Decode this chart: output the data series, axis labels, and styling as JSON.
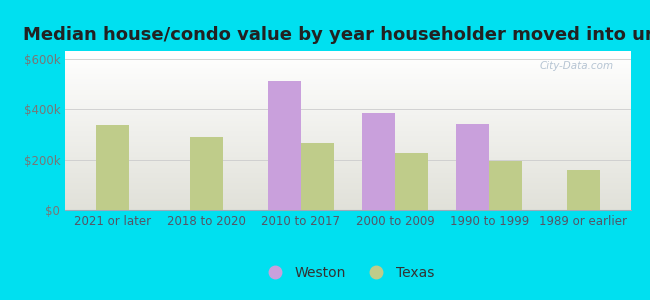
{
  "title": "Median house/condo value by year householder moved into unit",
  "categories": [
    "2021 or later",
    "2018 to 2020",
    "2010 to 2017",
    "2000 to 2009",
    "1990 to 1999",
    "1989 or earlier"
  ],
  "weston_values": [
    null,
    null,
    510000,
    385000,
    340000,
    null
  ],
  "texas_values": [
    335000,
    290000,
    265000,
    225000,
    195000,
    160000
  ],
  "weston_color": "#c9a0dc",
  "texas_color": "#bfcc8a",
  "background_outer": "#00e0f0",
  "ylabel_color": "#777777",
  "yticks": [
    0,
    200000,
    400000,
    600000
  ],
  "ytick_labels": [
    "$0",
    "$200k",
    "$400k",
    "$600k"
  ],
  "ylim": [
    0,
    630000
  ],
  "bar_width": 0.35,
  "legend_labels": [
    "Weston",
    "Texas"
  ],
  "title_fontsize": 13,
  "tick_fontsize": 8.5,
  "legend_fontsize": 10,
  "watermark": "City-Data.com"
}
